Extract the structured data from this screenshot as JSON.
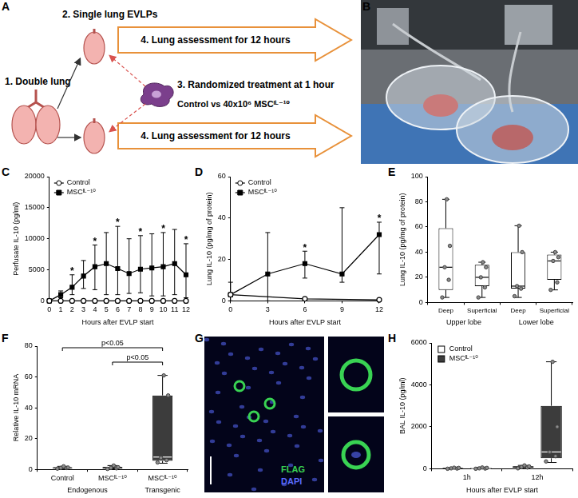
{
  "diagram": {
    "panel": "A",
    "double_lung": "1. Double lung",
    "single_lung": "2. Single lung EVLPs",
    "treatment_step": "3. Randomized treatment at 1 hour",
    "treatment_arms": "Control vs 40x10⁶ MSCᴵᴸ⁻¹⁰",
    "assessment": [
      "4. Lung assessment for 12 hours",
      "4. Lung assessment for 12 hours"
    ]
  },
  "photo": {
    "panel": "B"
  },
  "image": {
    "panel": "G",
    "channels": [
      {
        "name": "FLAG",
        "color": "#39d353"
      },
      {
        "name": "DAPI",
        "color": "#5a6cff"
      }
    ]
  },
  "chart_data": [
    {
      "panel": "C",
      "type": "line",
      "x_label": "Hours after EVLP start",
      "y_label": "Perfusate IL-10 (pg/ml)",
      "x": [
        0,
        1,
        2,
        3,
        4,
        5,
        6,
        7,
        8,
        9,
        10,
        11,
        12
      ],
      "xlim": [
        0,
        12
      ],
      "xticks": [
        0,
        1,
        2,
        3,
        4,
        5,
        6,
        7,
        8,
        9,
        10,
        11,
        12
      ],
      "ylim": [
        0,
        20000
      ],
      "yticks": [
        0,
        5000,
        10000,
        15000,
        20000
      ],
      "grid": false,
      "legend": "upper left",
      "series": [
        {
          "name": "Control",
          "color": "#000000",
          "marker": "open_circle",
          "values": [
            0,
            0,
            0,
            0,
            0,
            0,
            0,
            0,
            0,
            0,
            0,
            0,
            0
          ]
        },
        {
          "name": "MSCᴵᴸ⁻¹⁰",
          "color": "#000000",
          "marker": "square",
          "values": [
            0,
            1000,
            2200,
            4000,
            5500,
            6000,
            5200,
            4400,
            5100,
            5300,
            5500,
            6000,
            4200
          ],
          "lower": [
            null,
            500,
            1000,
            2000,
            1800,
            1000,
            1000,
            1200,
            1300,
            800,
            800,
            1000,
            500
          ],
          "upper": [
            null,
            1600,
            4200,
            6500,
            9000,
            11000,
            12000,
            10000,
            10500,
            10800,
            11000,
            11500,
            9200
          ]
        }
      ],
      "annotations": [
        {
          "x": 2,
          "text": "*"
        },
        {
          "x": 4,
          "text": "*"
        },
        {
          "x": 6,
          "text": "*"
        },
        {
          "x": 8,
          "text": "*"
        },
        {
          "x": 10,
          "text": "*"
        },
        {
          "x": 12,
          "text": "*"
        }
      ]
    },
    {
      "panel": "D",
      "type": "line",
      "x_label": "Hours after EVLP start",
      "y_label": "Lung IL-10 (pg/mg of protein)",
      "xlim": [
        0,
        12
      ],
      "xticks": [
        0,
        3,
        6,
        9,
        12
      ],
      "ylim": [
        0,
        60
      ],
      "yticks": [
        0,
        20,
        40,
        60
      ],
      "grid": false,
      "legend": "upper left",
      "series": [
        {
          "name": "Control",
          "color": "#000000",
          "marker": "open_circle",
          "x": [
            0,
            6,
            12
          ],
          "values": [
            3,
            1,
            0.5
          ],
          "lower": [
            0,
            null,
            null
          ],
          "upper": [
            9,
            null,
            null
          ]
        },
        {
          "name": "MSCᴵᴸ⁻¹⁰",
          "color": "#000000",
          "marker": "square",
          "x": [
            0,
            3,
            6,
            9,
            12
          ],
          "values": [
            3,
            13,
            18,
            13,
            32
          ],
          "lower": [
            null,
            0,
            11,
            9,
            13
          ],
          "upper": [
            null,
            33,
            24,
            45,
            38
          ]
        }
      ],
      "annotations": [
        {
          "x": 6,
          "text": "*"
        },
        {
          "x": 12,
          "text": "*"
        }
      ]
    },
    {
      "panel": "E",
      "type": "box",
      "y_label": "Lung IL-10 (pg/mg of protein)",
      "ylim": [
        0,
        100
      ],
      "yticks": [
        0,
        20,
        40,
        60,
        80,
        100
      ],
      "grid": false,
      "categories": [
        "Deep",
        "Superficial",
        "Deep",
        "Superficial"
      ],
      "group_labels": [
        "Upper lobe",
        "Upper lobe",
        "Lower lobe",
        "Lower lobe"
      ],
      "color": "#ffffff",
      "marker": "circle",
      "boxes": [
        {
          "min": 4,
          "q1": 10,
          "median": 28,
          "q3": 59,
          "max": 82,
          "points": [
            4,
            18,
            28,
            45,
            82
          ]
        },
        {
          "min": 4,
          "q1": 13,
          "median": 20,
          "q3": 30,
          "max": 32,
          "points": [
            4,
            12,
            20,
            28,
            32
          ]
        },
        {
          "min": 4,
          "q1": 11,
          "median": 13,
          "q3": 40,
          "max": 61,
          "points": [
            5,
            11,
            13,
            40,
            61
          ]
        },
        {
          "min": 10,
          "q1": 18,
          "median": 33,
          "q3": 38,
          "max": 40,
          "points": [
            10,
            16,
            33,
            36,
            40
          ]
        }
      ]
    },
    {
      "panel": "F",
      "type": "box",
      "y_label": "Relative IL-10 mRNA",
      "ylim": [
        0,
        80
      ],
      "yticks": [
        0,
        20,
        40,
        60,
        80
      ],
      "grid": false,
      "categories": [
        "Control",
        "MSCᴵᴸ⁻¹⁰",
        "MSCᴵᴸ⁻¹⁰"
      ],
      "group_labels": [
        "Endogenous",
        "Endogenous",
        "Transgenic"
      ],
      "colors": [
        "#ffffff",
        "#ffffff",
        "#3c3c3c"
      ],
      "marker": "circle",
      "boxes": [
        {
          "min": 0.5,
          "q1": 0.8,
          "median": 1,
          "q3": 1.3,
          "max": 2,
          "points": [
            0.5,
            0.9,
            1,
            1.2,
            2
          ]
        },
        {
          "min": 0.3,
          "q1": 0.6,
          "median": 1,
          "q3": 1.5,
          "max": 2.5,
          "points": [
            0.3,
            0.7,
            1,
            1.4,
            2.5
          ]
        },
        {
          "min": 4,
          "q1": 5.5,
          "median": 8,
          "q3": 48,
          "max": 61,
          "points": [
            4.5,
            6,
            7.5,
            48,
            61
          ]
        }
      ],
      "brackets": [
        {
          "from": 0,
          "to": 2,
          "text": "p<0.05"
        },
        {
          "from": 1,
          "to": 2,
          "text": "p<0.05"
        }
      ]
    },
    {
      "panel": "H",
      "type": "box",
      "x_label": "Hours after EVLP start",
      "y_label": "BAL IL-10 (pg/ml)",
      "ylim": [
        0,
        6000
      ],
      "yticks": [
        0,
        2000,
        4000,
        6000
      ],
      "grid": false,
      "legend": "upper left",
      "categories": [
        "1h",
        "12h"
      ],
      "series": [
        {
          "name": "Control",
          "color": "#ffffff",
          "marker": "circle",
          "boxes": [
            {
              "min": 0,
              "q1": 0,
              "median": 10,
              "q3": 30,
              "max": 50,
              "points": [
                0,
                10,
                20,
                40,
                50
              ]
            },
            {
              "min": 20,
              "q1": 50,
              "median": 80,
              "q3": 120,
              "max": 160,
              "points": [
                20,
                60,
                80,
                110,
                160
              ]
            }
          ]
        },
        {
          "name": "MSCᴵᴸ⁻¹⁰",
          "color": "#3c3c3c",
          "marker": "circle",
          "boxes": [
            {
              "min": 0,
              "q1": 10,
              "median": 20,
              "q3": 40,
              "max": 60,
              "points": [
                0,
                10,
                20,
                40,
                60
              ]
            },
            {
              "min": 300,
              "q1": 500,
              "median": 800,
              "q3": 3000,
              "max": 5100,
              "points": [
                350,
                600,
                800,
                2000,
                5100
              ]
            }
          ]
        }
      ]
    }
  ]
}
